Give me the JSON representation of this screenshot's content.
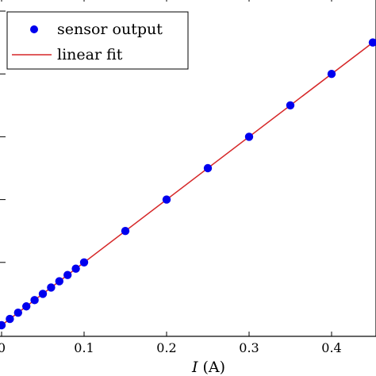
{
  "chart_data": {
    "type": "scatter",
    "xlabel_var": "I",
    "xlabel_unit": "(A)",
    "ylabel": "",
    "title": "",
    "xlim": [
      0,
      0.45
    ],
    "x_ticks": [
      0,
      0.1,
      0.2,
      0.3,
      0.4
    ],
    "x_tick_labels": [
      "0",
      "0.1",
      "0.2",
      "0.3",
      "0.4"
    ],
    "grid": false,
    "legend_position": "top-left",
    "series": [
      {
        "name": "sensor output",
        "kind": "markers",
        "color": "#0000ee",
        "x": [
          0.0,
          0.01,
          0.02,
          0.03,
          0.04,
          0.05,
          0.06,
          0.07,
          0.08,
          0.09,
          0.1,
          0.15,
          0.2,
          0.25,
          0.3,
          0.35,
          0.4,
          0.45
        ],
        "y": [
          0.0,
          0.01,
          0.02,
          0.03,
          0.04,
          0.05,
          0.06,
          0.07,
          0.08,
          0.09,
          0.1,
          0.15,
          0.2,
          0.25,
          0.3,
          0.35,
          0.4,
          0.45
        ]
      },
      {
        "name": "linear fit",
        "kind": "line",
        "color": "#d62728",
        "x": [
          0.0,
          0.45
        ],
        "y": [
          0.0,
          0.45
        ]
      }
    ]
  }
}
